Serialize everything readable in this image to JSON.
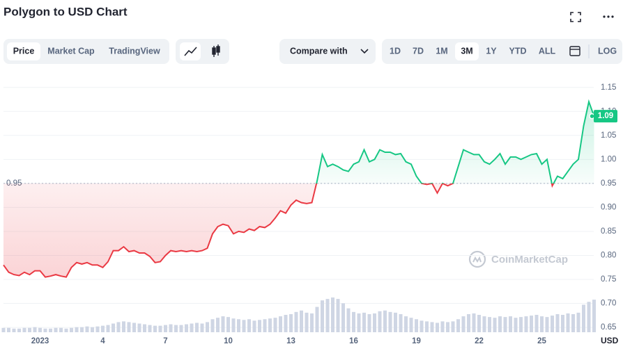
{
  "header": {
    "title": "Polygon to USD Chart"
  },
  "toolbar": {
    "tabs": [
      "Price",
      "Market Cap",
      "TradingView"
    ],
    "selected_tab": "Price",
    "compare": "Compare with",
    "ranges": [
      "1D",
      "7D",
      "1M",
      "3M",
      "1Y",
      "YTD",
      "ALL"
    ],
    "selected_range": "3M",
    "scale": "LOG"
  },
  "chart_data": {
    "type": "line",
    "categories": [
      null,
      null,
      null,
      null,
      null,
      null,
      null,
      "2023",
      null,
      null,
      null,
      null,
      null,
      null,
      null,
      null,
      null,
      null,
      null,
      "4",
      null,
      null,
      null,
      null,
      null,
      null,
      null,
      null,
      null,
      null,
      null,
      "7",
      null,
      null,
      null,
      null,
      null,
      null,
      null,
      null,
      null,
      null,
      null,
      "10",
      null,
      null,
      null,
      null,
      null,
      null,
      null,
      null,
      null,
      null,
      null,
      "13",
      null,
      null,
      null,
      null,
      null,
      null,
      null,
      null,
      null,
      null,
      null,
      "16",
      null,
      null,
      null,
      null,
      null,
      null,
      null,
      null,
      null,
      null,
      null,
      "19",
      null,
      null,
      null,
      null,
      null,
      null,
      null,
      null,
      null,
      null,
      null,
      "22",
      null,
      null,
      null,
      null,
      null,
      null,
      null,
      null,
      null,
      null,
      null,
      "25",
      null,
      null,
      null,
      null,
      null,
      null,
      null,
      null,
      null,
      null
    ],
    "values": [
      0.78,
      0.765,
      0.76,
      0.758,
      0.765,
      0.76,
      0.768,
      0.768,
      0.755,
      0.757,
      0.76,
      0.757,
      0.755,
      0.775,
      0.785,
      0.782,
      0.785,
      0.78,
      0.78,
      0.775,
      0.787,
      0.81,
      0.81,
      0.818,
      0.808,
      0.81,
      0.805,
      0.805,
      0.798,
      0.785,
      0.787,
      0.8,
      0.81,
      0.808,
      0.81,
      0.808,
      0.81,
      0.808,
      0.81,
      0.815,
      0.845,
      0.86,
      0.865,
      0.862,
      0.845,
      0.85,
      0.848,
      0.855,
      0.852,
      0.86,
      0.858,
      0.865,
      0.878,
      0.893,
      0.888,
      0.905,
      0.915,
      0.91,
      0.908,
      0.91,
      0.955,
      1.01,
      0.985,
      0.99,
      0.985,
      0.978,
      0.975,
      0.99,
      0.995,
      1.02,
      0.995,
      1.0,
      1.02,
      1.015,
      1.015,
      1.01,
      1.012,
      0.995,
      0.99,
      0.965,
      0.95,
      0.948,
      0.95,
      0.93,
      0.95,
      0.945,
      0.95,
      0.985,
      1.02,
      1.015,
      1.01,
      1.01,
      0.995,
      0.99,
      1.0,
      1.012,
      0.99,
      1.005,
      1.005,
      1.0,
      1.005,
      1.01,
      1.012,
      0.99,
      1.0,
      0.945,
      0.965,
      0.96,
      0.975,
      0.99,
      1.0,
      1.07,
      1.12,
      1.09
    ],
    "volume": [
      6,
      6,
      5,
      5,
      6,
      6,
      7,
      6,
      5,
      5,
      6,
      6,
      5,
      6,
      7,
      7,
      8,
      7,
      8,
      9,
      10,
      12,
      14,
      15,
      14,
      13,
      12,
      11,
      10,
      9,
      9,
      10,
      11,
      10,
      10,
      11,
      12,
      13,
      12,
      14,
      18,
      20,
      22,
      21,
      19,
      18,
      17,
      18,
      16,
      17,
      18,
      19,
      20,
      22,
      24,
      25,
      28,
      30,
      27,
      26,
      35,
      44,
      46,
      48,
      46,
      40,
      33,
      28,
      26,
      27,
      25,
      26,
      29,
      30,
      28,
      27,
      25,
      22,
      20,
      18,
      16,
      15,
      14,
      13,
      15,
      14,
      15,
      18,
      22,
      25,
      26,
      24,
      22,
      21,
      20,
      22,
      21,
      22,
      20,
      21,
      22,
      23,
      24,
      22,
      21,
      23,
      25,
      24,
      26,
      25,
      27,
      38,
      42,
      45
    ],
    "up_color": "#16c784",
    "down_color": "#ea3943",
    "volume_color": "#cfd6e4",
    "baseline": 0.95,
    "current_price": 1.09,
    "ylim": [
      0.64,
      1.18
    ],
    "yticks": [
      0.65,
      {
        "value": 0.7,
        "label": "0.70"
      },
      0.75,
      {
        "value": 0.8,
        "label": "0.80"
      },
      0.85,
      {
        "value": 0.9,
        "label": "0.90"
      },
      0.95,
      {
        "value": 1,
        "label": "1.00"
      },
      1.05,
      {
        "value": 1.1,
        "label": "1.10"
      },
      1.15
    ],
    "grid": true,
    "currency": "USD",
    "watermark": "CoinMarketCap"
  }
}
